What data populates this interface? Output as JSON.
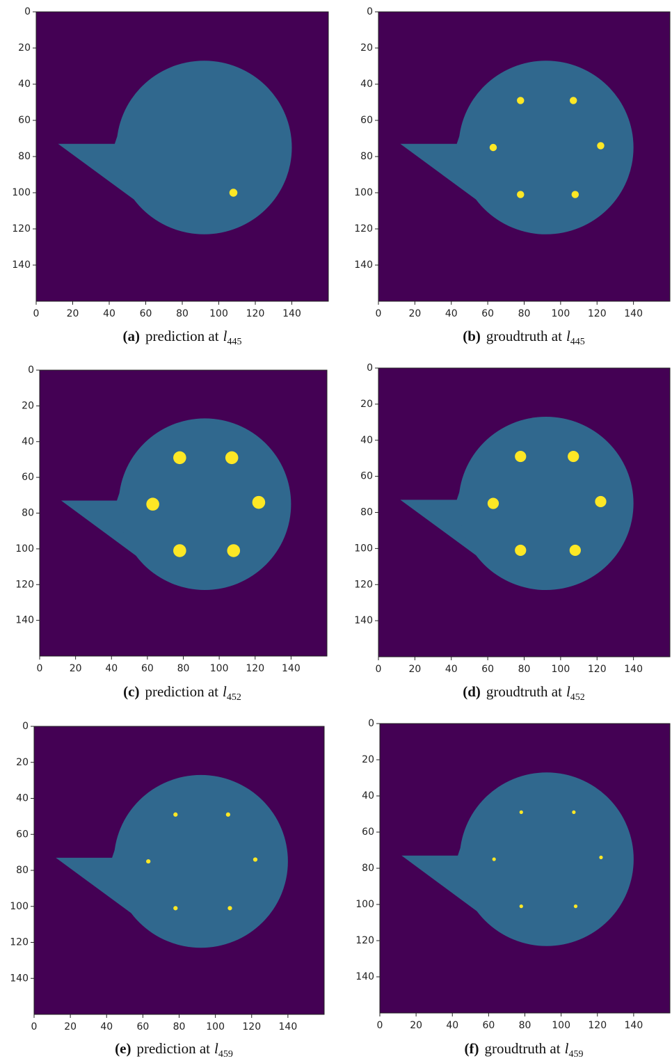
{
  "panels": [
    {
      "label": "(a)",
      "caption": "prediction at",
      "variable": "l",
      "subscript": "445",
      "xticks": [
        0,
        20,
        40,
        60,
        80,
        100,
        120,
        140
      ],
      "yticks": [
        0,
        20,
        40,
        60,
        80,
        100,
        120,
        140
      ]
    },
    {
      "label": "(b)",
      "caption": "groudtruth at",
      "variable": "l",
      "subscript": "445",
      "xticks": [
        0,
        20,
        40,
        60,
        80,
        100,
        120,
        140
      ],
      "yticks": [
        0,
        20,
        40,
        60,
        80,
        100,
        120,
        140
      ]
    },
    {
      "label": "(c)",
      "caption": "prediction at",
      "variable": "l",
      "subscript": "452",
      "xticks": [
        0,
        20,
        40,
        60,
        80,
        100,
        120,
        140
      ],
      "yticks": [
        0,
        20,
        40,
        60,
        80,
        100,
        120,
        140
      ]
    },
    {
      "label": "(d)",
      "caption": "groudtruth at",
      "variable": "l",
      "subscript": "452",
      "xticks": [
        0,
        20,
        40,
        60,
        80,
        100,
        120,
        140
      ],
      "yticks": [
        0,
        20,
        40,
        60,
        80,
        100,
        120,
        140
      ]
    },
    {
      "label": "(e)",
      "caption": "prediction at",
      "variable": "l",
      "subscript": "459",
      "xticks": [
        0,
        20,
        40,
        60,
        80,
        100,
        120,
        140
      ],
      "yticks": [
        0,
        20,
        40,
        60,
        80,
        100,
        120,
        140
      ]
    },
    {
      "label": "(f)",
      "caption": "groudtruth at",
      "variable": "l",
      "subscript": "459",
      "xticks": [
        0,
        20,
        40,
        60,
        80,
        100,
        120,
        140
      ],
      "yticks": [
        0,
        20,
        40,
        60,
        80,
        100,
        120,
        140
      ]
    }
  ]
}
